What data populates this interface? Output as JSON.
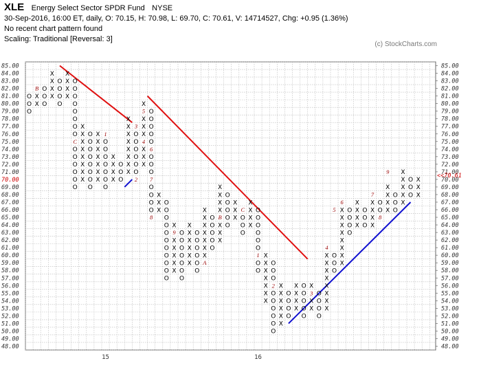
{
  "header": {
    "symbol": "XLE",
    "name": "Energy Select Sector SPDR Fund",
    "exchange": "NYSE",
    "quote": "30-Sep-2016, 16:00 ET, daily, O: 70.15, H: 70.98, L: 69.70, C: 70.61, V: 14714527, Chg: +0.95 (1.36%)",
    "pattern": "No recent chart pattern found",
    "scaling": "Scaling: Traditional [Reversal: 3]",
    "watermark": "(c) StockCharts.com"
  },
  "colors": {
    "down_trend": "#e01010",
    "up_trend": "#1010d0",
    "last_price": "#cc0000",
    "month_label": "#990000"
  },
  "chart_data": {
    "type": "point-and-figure",
    "box_size": 1,
    "reversal": 3,
    "ylim": [
      48,
      85
    ],
    "y_ticks": [
      "48.00",
      "49.00",
      "50.00",
      "51.00",
      "52.00",
      "53.00",
      "54.00",
      "55.00",
      "56.00",
      "57.00",
      "58.00",
      "59.00",
      "60.00",
      "61.00",
      "62.00",
      "63.00",
      "64.00",
      "65.00",
      "66.00",
      "67.00",
      "68.00",
      "69.00",
      "70.00",
      "71.00",
      "72.00",
      "73.00",
      "74.00",
      "75.00",
      "76.00",
      "77.00",
      "78.00",
      "79.00",
      "80.00",
      "81.00",
      "82.00",
      "83.00",
      "84.00",
      "85.00"
    ],
    "x_labels": [
      {
        "col": 10,
        "label": "15"
      },
      {
        "col": 30,
        "label": "16"
      }
    ],
    "last_price": 70.61,
    "last_price_label": "70.00",
    "right_last_label": "<<70.61",
    "columns": [
      {
        "type": "O",
        "high": 81,
        "low": 79
      },
      {
        "type": "X",
        "high": 82,
        "low": 80
      },
      {
        "type": "O",
        "high": 82,
        "low": 80
      },
      {
        "type": "X",
        "high": 84,
        "low": 81
      },
      {
        "type": "O",
        "high": 83,
        "low": 80
      },
      {
        "type": "X",
        "high": 84,
        "low": 81
      },
      {
        "type": "O",
        "high": 83,
        "low": 69
      },
      {
        "type": "X",
        "high": 77,
        "low": 70
      },
      {
        "type": "O",
        "high": 76,
        "low": 69
      },
      {
        "type": "X",
        "high": 76,
        "low": 70
      },
      {
        "type": "O",
        "high": 75,
        "low": 69
      },
      {
        "type": "X",
        "high": 73,
        "low": 70
      },
      {
        "type": "O",
        "high": 72,
        "low": 70
      },
      {
        "type": "X",
        "high": 78,
        "low": 71
      },
      {
        "type": "O",
        "high": 77,
        "low": 71
      },
      {
        "type": "X",
        "high": 80,
        "low": 72
      },
      {
        "type": "O",
        "high": 79,
        "low": 65
      },
      {
        "type": "X",
        "high": 68,
        "low": 66
      },
      {
        "type": "O",
        "high": 67,
        "low": 57
      },
      {
        "type": "X",
        "high": 64,
        "low": 58
      },
      {
        "type": "O",
        "high": 63,
        "low": 57
      },
      {
        "type": "X",
        "high": 64,
        "low": 59
      },
      {
        "type": "O",
        "high": 63,
        "low": 58
      },
      {
        "type": "X",
        "high": 66,
        "low": 59
      },
      {
        "type": "O",
        "high": 65,
        "low": 61
      },
      {
        "type": "X",
        "high": 69,
        "low": 62
      },
      {
        "type": "O",
        "high": 68,
        "low": 64
      },
      {
        "type": "X",
        "high": 67,
        "low": 65
      },
      {
        "type": "O",
        "high": 66,
        "low": 63
      },
      {
        "type": "X",
        "high": 67,
        "low": 64
      },
      {
        "type": "O",
        "high": 66,
        "low": 58
      },
      {
        "type": "X",
        "high": 60,
        "low": 54
      },
      {
        "type": "O",
        "high": 59,
        "low": 50
      },
      {
        "type": "X",
        "high": 56,
        "low": 51
      },
      {
        "type": "O",
        "high": 55,
        "low": 52
      },
      {
        "type": "X",
        "high": 56,
        "low": 53
      },
      {
        "type": "O",
        "high": 56,
        "low": 52
      },
      {
        "type": "X",
        "high": 56,
        "low": 53
      },
      {
        "type": "O",
        "high": 55,
        "low": 52
      },
      {
        "type": "X",
        "high": 61,
        "low": 53
      },
      {
        "type": "O",
        "high": 60,
        "low": 58
      },
      {
        "type": "X",
        "high": 67,
        "low": 59
      },
      {
        "type": "O",
        "high": 66,
        "low": 63
      },
      {
        "type": "X",
        "high": 67,
        "low": 64
      },
      {
        "type": "O",
        "high": 66,
        "low": 64
      },
      {
        "type": "X",
        "high": 68,
        "low": 64
      },
      {
        "type": "O",
        "high": 67,
        "low": 65
      },
      {
        "type": "X",
        "high": 69,
        "low": 66
      },
      {
        "type": "O",
        "high": 68,
        "low": 66
      },
      {
        "type": "X",
        "high": 71,
        "low": 67
      },
      {
        "type": "O",
        "high": 70,
        "low": 68
      },
      {
        "type": "X",
        "high": 70,
        "low": 68
      }
    ],
    "month_labels": [
      {
        "col": 1,
        "y": 82,
        "label": "B"
      },
      {
        "col": 6,
        "y": 75,
        "label": "C"
      },
      {
        "col": 10,
        "y": 76,
        "label": "1"
      },
      {
        "col": 14,
        "y": 70,
        "label": "2"
      },
      {
        "col": 14,
        "y": 77,
        "label": "3"
      },
      {
        "col": 15,
        "y": 75,
        "label": "4"
      },
      {
        "col": 15,
        "y": 79,
        "label": "5"
      },
      {
        "col": 16,
        "y": 74,
        "label": "6"
      },
      {
        "col": 16,
        "y": 70,
        "label": "7"
      },
      {
        "col": 16,
        "y": 65,
        "label": "8"
      },
      {
        "col": 19,
        "y": 63,
        "label": "9"
      },
      {
        "col": 23,
        "y": 59,
        "label": "A"
      },
      {
        "col": 25,
        "y": 65,
        "label": "B"
      },
      {
        "col": 28,
        "y": 66,
        "label": "C"
      },
      {
        "col": 30,
        "y": 60,
        "label": "1"
      },
      {
        "col": 32,
        "y": 56,
        "label": "2"
      },
      {
        "col": 37,
        "y": 55,
        "label": "3"
      },
      {
        "col": 39,
        "y": 61,
        "label": "4"
      },
      {
        "col": 40,
        "y": 66,
        "label": "5"
      },
      {
        "col": 41,
        "y": 67,
        "label": "6"
      },
      {
        "col": 45,
        "y": 68,
        "label": "7"
      },
      {
        "col": 46,
        "y": 65,
        "label": "8"
      },
      {
        "col": 47,
        "y": 71,
        "label": "9"
      }
    ],
    "trend_lines": [
      {
        "kind": "resistance",
        "color": "red",
        "from": {
          "col": 4,
          "y": 85
        },
        "to": {
          "col": 13.5,
          "y": 77.5
        }
      },
      {
        "kind": "support",
        "color": "blue",
        "from": {
          "col": 12.5,
          "y": 69
        },
        "to": {
          "col": 13.5,
          "y": 70
        }
      },
      {
        "kind": "resistance",
        "color": "red",
        "from": {
          "col": 15.5,
          "y": 81
        },
        "to": {
          "col": 36.5,
          "y": 59.5
        }
      },
      {
        "kind": "support",
        "color": "blue",
        "from": {
          "col": 34,
          "y": 51
        },
        "to": {
          "col": 50,
          "y": 67
        }
      }
    ]
  }
}
